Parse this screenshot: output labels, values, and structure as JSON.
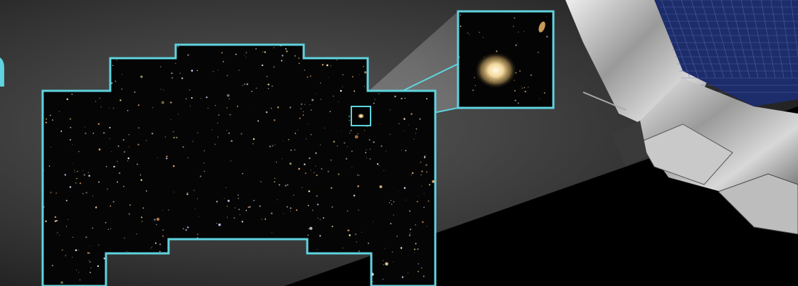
{
  "heading_fragment": "n"
}
